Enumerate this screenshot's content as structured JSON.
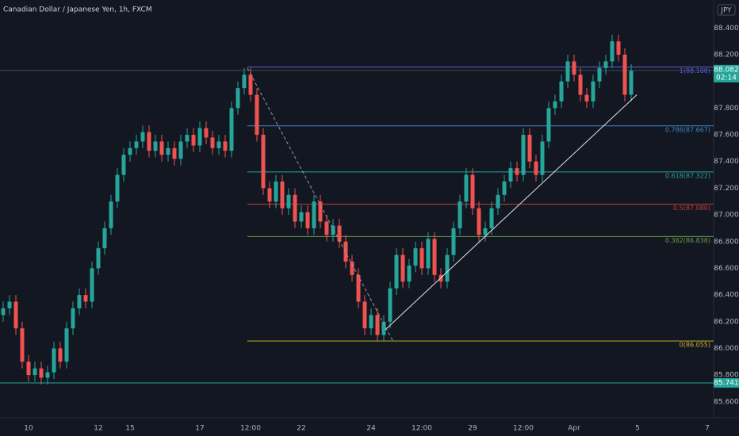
{
  "chart_data": {
    "type": "candlestick",
    "title": "Canadian Dollar / Japanese Yen, 1h, FXCM",
    "currency": "JPY",
    "up_color": "#26a69a",
    "down_color": "#ef5350",
    "grid": false,
    "categories": [
      null,
      null,
      null,
      null,
      "10",
      null,
      null,
      null,
      null,
      null,
      null,
      null,
      null,
      null,
      null,
      "12",
      null,
      null,
      null,
      null,
      "15",
      null,
      null,
      null,
      null,
      null,
      null,
      null,
      null,
      null,
      null,
      "17",
      null,
      null,
      null,
      null,
      null,
      null,
      null,
      "12:00",
      null,
      null,
      null,
      null,
      null,
      null,
      null,
      "22",
      null,
      null,
      null,
      null,
      null,
      null,
      null,
      null,
      null,
      null,
      "24",
      null,
      null,
      null,
      null,
      null,
      null,
      null,
      "12:00",
      null,
      null,
      null,
      null,
      null,
      null,
      null,
      "29",
      null,
      null,
      null,
      null,
      null,
      null,
      null,
      "12:00",
      null,
      null,
      null,
      null,
      null,
      null,
      null,
      "Apr",
      null,
      null,
      null,
      null,
      null,
      null,
      null,
      null,
      null,
      "5",
      null,
      null,
      null,
      null,
      null,
      null,
      null,
      null,
      null,
      null,
      "7"
    ],
    "open": [
      86.25,
      86.3,
      86.35,
      86.15,
      85.9,
      85.8,
      85.85,
      85.78,
      85.82,
      86.0,
      85.9,
      86.15,
      86.3,
      86.4,
      86.35,
      86.6,
      86.75,
      86.9,
      87.1,
      87.3,
      87.45,
      87.5,
      87.55,
      87.62,
      87.48,
      87.55,
      87.45,
      87.5,
      87.42,
      87.55,
      87.6,
      87.52,
      87.65,
      87.58,
      87.5,
      87.55,
      87.48,
      87.8,
      87.95,
      88.05,
      87.9,
      87.6,
      87.2,
      87.1,
      87.25,
      87.05,
      87.15,
      86.95,
      87.02,
      86.9,
      87.1,
      86.95,
      86.85,
      86.92,
      86.8,
      86.65,
      86.55,
      86.35,
      86.15,
      86.25,
      86.1,
      86.2,
      86.45,
      86.7,
      86.5,
      86.62,
      86.75,
      86.6,
      86.82,
      86.55,
      86.5,
      86.7,
      86.9,
      87.1,
      87.3,
      87.05,
      86.85,
      86.9,
      87.05,
      87.15,
      87.25,
      87.35,
      87.3,
      87.6,
      87.4,
      87.3,
      87.55,
      87.8,
      87.85,
      88.0,
      88.15,
      88.05,
      87.9,
      87.85,
      88.0,
      88.1,
      88.15,
      88.3,
      88.2,
      87.9,
      null,
      null,
      null,
      null,
      null,
      null,
      null,
      null,
      null,
      null,
      null,
      null
    ],
    "high": [
      86.35,
      86.4,
      86.4,
      86.2,
      85.95,
      85.9,
      85.9,
      85.87,
      86.05,
      86.05,
      86.2,
      86.35,
      86.45,
      86.45,
      86.65,
      86.8,
      86.95,
      87.15,
      87.35,
      87.5,
      87.55,
      87.6,
      87.67,
      87.67,
      87.6,
      87.6,
      87.55,
      87.55,
      87.6,
      87.65,
      87.65,
      87.7,
      87.7,
      87.63,
      87.6,
      87.6,
      87.85,
      88.0,
      88.1,
      88.1,
      87.95,
      87.65,
      87.25,
      87.3,
      87.3,
      87.2,
      87.2,
      87.07,
      87.07,
      87.15,
      87.15,
      87.0,
      86.97,
      86.97,
      86.85,
      86.7,
      86.6,
      86.4,
      86.3,
      86.3,
      86.25,
      86.5,
      86.75,
      86.75,
      86.67,
      86.8,
      86.8,
      86.87,
      86.87,
      86.6,
      86.75,
      86.95,
      87.15,
      87.35,
      87.35,
      87.1,
      86.95,
      87.1,
      87.2,
      87.3,
      87.4,
      87.4,
      87.65,
      87.65,
      87.45,
      87.6,
      87.85,
      87.9,
      88.05,
      88.2,
      88.2,
      88.1,
      87.95,
      88.05,
      88.15,
      88.2,
      88.35,
      88.35,
      88.25,
      88.13,
      null,
      null,
      null,
      null,
      null,
      null,
      null,
      null,
      null,
      null,
      null,
      null
    ],
    "low": [
      86.2,
      86.25,
      86.1,
      85.85,
      85.75,
      85.75,
      85.73,
      85.73,
      85.77,
      85.85,
      85.85,
      86.1,
      86.25,
      86.3,
      86.3,
      86.55,
      86.7,
      86.85,
      87.05,
      87.25,
      87.4,
      87.45,
      87.5,
      87.43,
      87.43,
      87.4,
      87.4,
      87.37,
      87.37,
      87.5,
      87.47,
      87.47,
      87.53,
      87.45,
      87.45,
      87.43,
      87.43,
      87.75,
      87.9,
      87.85,
      87.55,
      87.15,
      87.05,
      87.05,
      87.0,
      87.0,
      86.9,
      86.9,
      86.85,
      86.85,
      86.9,
      86.8,
      86.8,
      86.75,
      86.6,
      86.5,
      86.3,
      86.1,
      86.1,
      86.05,
      86.05,
      86.15,
      86.4,
      86.45,
      86.45,
      86.57,
      86.55,
      86.55,
      86.5,
      86.45,
      86.45,
      86.65,
      86.85,
      87.05,
      87.0,
      86.8,
      86.8,
      86.85,
      87.0,
      87.1,
      87.2,
      87.25,
      87.25,
      87.35,
      87.25,
      87.25,
      87.5,
      87.75,
      87.8,
      87.95,
      88.0,
      87.85,
      87.8,
      87.8,
      87.95,
      88.05,
      88.1,
      88.15,
      87.85,
      87.85,
      null,
      null,
      null,
      null,
      null,
      null,
      null,
      null,
      null,
      null,
      null,
      null
    ],
    "close": [
      86.3,
      86.35,
      86.15,
      85.9,
      85.8,
      85.85,
      85.78,
      85.82,
      86.0,
      85.9,
      86.15,
      86.3,
      86.4,
      86.35,
      86.6,
      86.75,
      86.9,
      87.1,
      87.3,
      87.45,
      87.5,
      87.55,
      87.62,
      87.48,
      87.55,
      87.45,
      87.5,
      87.42,
      87.55,
      87.6,
      87.52,
      87.65,
      87.58,
      87.5,
      87.55,
      87.48,
      87.8,
      87.95,
      88.05,
      87.9,
      87.6,
      87.2,
      87.1,
      87.25,
      87.05,
      87.15,
      86.95,
      87.02,
      86.9,
      87.1,
      86.95,
      86.85,
      86.92,
      86.8,
      86.65,
      86.55,
      86.35,
      86.15,
      86.25,
      86.1,
      86.2,
      86.45,
      86.7,
      86.5,
      86.62,
      86.75,
      86.6,
      86.82,
      86.55,
      86.5,
      86.7,
      86.9,
      87.1,
      87.3,
      87.05,
      86.85,
      86.9,
      87.05,
      87.15,
      87.25,
      87.35,
      87.3,
      87.6,
      87.4,
      87.3,
      87.55,
      87.8,
      87.85,
      88.0,
      88.15,
      88.05,
      87.9,
      87.85,
      88.0,
      88.1,
      88.15,
      88.3,
      88.2,
      87.9,
      88.08,
      null,
      null,
      null,
      null,
      null,
      null,
      null,
      null,
      null,
      null,
      null,
      null
    ],
    "ylim": [
      85.48,
      88.61
    ],
    "yticks": [
      {
        "value": 85.6,
        "label": "85.600"
      },
      {
        "value": 85.8,
        "label": "85.800"
      },
      {
        "value": 86.0,
        "label": "86.000"
      },
      {
        "value": 86.2,
        "label": "86.200"
      },
      {
        "value": 86.4,
        "label": "86.400"
      },
      {
        "value": 86.6,
        "label": "86.600"
      },
      {
        "value": 86.8,
        "label": "86.800"
      },
      {
        "value": 87.0,
        "label": "87.000"
      },
      {
        "value": 87.2,
        "label": "87.200"
      },
      {
        "value": 87.4,
        "label": "87.400"
      },
      {
        "value": 87.6,
        "label": "87.600"
      },
      {
        "value": 87.8,
        "label": "87.800"
      },
      {
        "value": 88.2,
        "label": "88.200"
      },
      {
        "value": 88.4,
        "label": "88.400"
      }
    ],
    "fib_start_index": 38.5,
    "fib_levels": [
      {
        "value": 88.108,
        "label": "1(88.108)",
        "color": "#5c5fd6"
      },
      {
        "value": 87.667,
        "label": "0.786(87.667)",
        "color": "#3d87c8"
      },
      {
        "value": 87.322,
        "label": "0.618(87.322)",
        "color": "#26a69a"
      },
      {
        "value": 87.08,
        "label": "0.5(87.080)",
        "color": "#c43c3c"
      },
      {
        "value": 86.838,
        "label": "0.382(86.838)",
        "color": "#6a9a4a"
      },
      {
        "value": 86.055,
        "label": "0(86.055)",
        "color": "#c8b02a"
      }
    ],
    "trendlines": [
      {
        "color": "#e0e3eb",
        "dashed": false,
        "points": [
          [
            60.25,
            86.14
          ],
          [
            99.9,
            87.9
          ]
        ]
      },
      {
        "color": "#9598a1",
        "dashed": true,
        "points": [
          [
            38.5,
            88.1
          ],
          [
            61.4,
            86.06
          ]
        ]
      }
    ],
    "last_price": {
      "value": 88.082,
      "countdown": "02:14",
      "color": "#26a69a"
    },
    "horizontal_line": {
      "value": 85.741,
      "color": "#26a69a"
    }
  }
}
